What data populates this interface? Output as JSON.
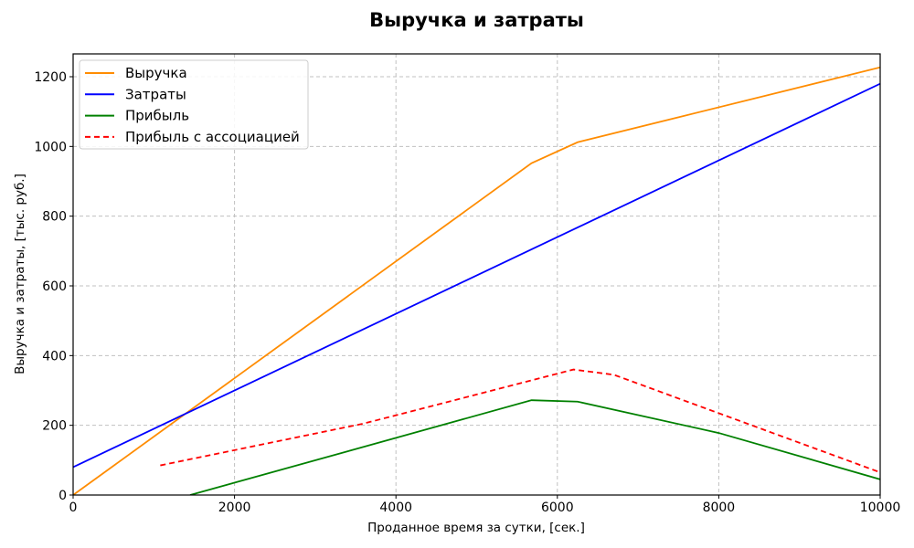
{
  "chart_data": {
    "type": "line",
    "title": "Выручка и затраты",
    "xlabel": "Проданное время за сутки, [сек.]",
    "ylabel": "Выручка и затраты, [тыс. руб.]",
    "xlim": [
      0,
      10000
    ],
    "ylim": [
      0,
      1265
    ],
    "xticks": [
      0,
      2000,
      4000,
      6000,
      8000,
      10000
    ],
    "yticks": [
      0,
      200,
      400,
      600,
      800,
      1000,
      1200
    ],
    "grid": true,
    "legend_position": "upper left",
    "series": [
      {
        "name": "Выручка",
        "color": "#ff8c00",
        "style": "solid",
        "x": [
          0,
          5680,
          6250,
          10000
        ],
        "y": [
          0,
          952,
          1012,
          1227
        ]
      },
      {
        "name": "Затраты",
        "color": "#0000ff",
        "style": "solid",
        "x": [
          0,
          10000
        ],
        "y": [
          80,
          1180
        ]
      },
      {
        "name": "Прибыль",
        "color": "#008000",
        "style": "solid",
        "x": [
          1450,
          5680,
          6250,
          8000,
          10000
        ],
        "y": [
          0,
          272,
          268,
          178,
          45
        ]
      },
      {
        "name": "Прибыль с ассоциацией",
        "color": "#ff0000",
        "style": "dashed",
        "x": [
          1080,
          3600,
          6200,
          6700,
          10000
        ],
        "y": [
          85,
          205,
          360,
          345,
          65
        ]
      }
    ]
  }
}
